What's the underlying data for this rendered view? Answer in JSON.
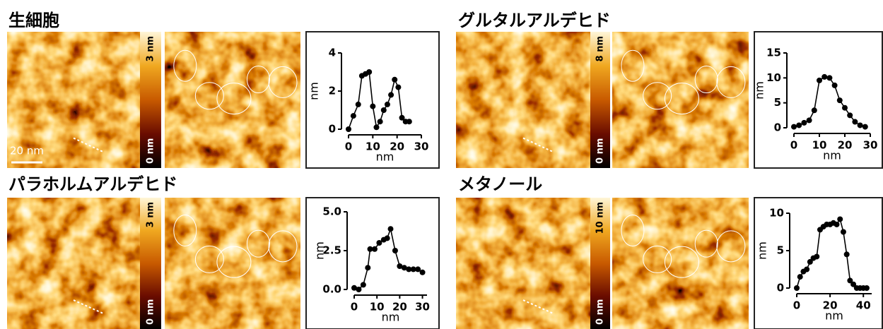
{
  "chart_data": [
    {
      "type": "line",
      "title": "生細胞",
      "colorbar": {
        "max": "3 nm",
        "min": "0 nm"
      },
      "scale_bar": "20 nm",
      "x": [
        0,
        2,
        4,
        5.5,
        7,
        8.5,
        10,
        11.5,
        13,
        14.5,
        16,
        17.5,
        19,
        20.5,
        22,
        23.5,
        25
      ],
      "values": [
        0,
        0.7,
        1.3,
        2.8,
        2.9,
        3.0,
        1.2,
        0.1,
        0.4,
        1.0,
        1.3,
        1.8,
        2.6,
        2.2,
        0.6,
        0.4,
        0.4
      ],
      "color": "#000000",
      "xlim": [
        0,
        30
      ],
      "ylim": [
        0,
        4
      ],
      "xticks": [
        0,
        10,
        20,
        30
      ],
      "yticks": [
        0,
        2,
        4
      ],
      "xlabel": "nm",
      "ylabel": "nm"
    },
    {
      "type": "line",
      "title": "グルタルアルデヒド",
      "colorbar": {
        "max": "8 nm",
        "min": "0 nm"
      },
      "x": [
        0,
        2,
        4,
        6,
        8,
        10,
        12,
        14,
        16,
        18,
        20,
        22,
        24,
        26,
        28
      ],
      "values": [
        0.2,
        0.5,
        1.0,
        1.5,
        3.5,
        9.5,
        10.2,
        10.0,
        8.5,
        5.5,
        4.0,
        2.5,
        1.2,
        0.5,
        0.2
      ],
      "color": "#000000",
      "xlim": [
        0,
        30
      ],
      "ylim": [
        0,
        15
      ],
      "xticks": [
        0,
        10,
        20,
        30
      ],
      "yticks": [
        0,
        5,
        10,
        15
      ],
      "xlabel": "nm",
      "ylabel": "nm"
    },
    {
      "type": "line",
      "title": "パラホルムアルデヒド",
      "colorbar": {
        "max": "3 nm",
        "min": "0 nm"
      },
      "x": [
        0,
        2,
        4,
        6,
        7,
        9,
        11,
        13,
        14.5,
        16,
        18,
        20,
        22,
        24,
        26,
        28,
        30
      ],
      "values": [
        0.1,
        0,
        0.3,
        1.4,
        2.6,
        2.6,
        3.0,
        3.2,
        3.3,
        3.9,
        2.5,
        1.5,
        1.4,
        1.3,
        1.3,
        1.3,
        1.1
      ],
      "color": "#000000",
      "xlim": [
        0,
        32
      ],
      "ylim": [
        0,
        5
      ],
      "xticks": [
        0,
        10,
        20,
        30
      ],
      "yticks": [
        {
          "value": 0,
          "label": "0.0"
        },
        {
          "value": 2.5,
          "label": "2.5"
        },
        {
          "value": 5,
          "label": "5.0"
        }
      ],
      "xlabel": "nm",
      "ylabel": "nm"
    },
    {
      "type": "line",
      "title": "メタノール",
      "colorbar": {
        "max": "10 nm",
        "min": "0 nm"
      },
      "x": [
        0,
        2,
        4,
        6,
        8,
        10,
        12,
        14,
        16,
        18,
        20,
        22,
        24,
        26,
        28,
        30,
        32,
        34,
        36,
        38,
        40,
        42
      ],
      "values": [
        0,
        1.5,
        2.2,
        2.5,
        3.5,
        4.0,
        4.2,
        7.8,
        8.2,
        8.5,
        8.5,
        8.7,
        8.5,
        9.2,
        7.5,
        4.5,
        1.0,
        0.5,
        0,
        0,
        0,
        0
      ],
      "color": "#000000",
      "xlim": [
        0,
        45
      ],
      "ylim": [
        0,
        10
      ],
      "xticks": [
        0,
        20,
        40
      ],
      "yticks": [
        0,
        5,
        10
      ],
      "xlabel": "nm",
      "ylabel": "nm"
    }
  ]
}
